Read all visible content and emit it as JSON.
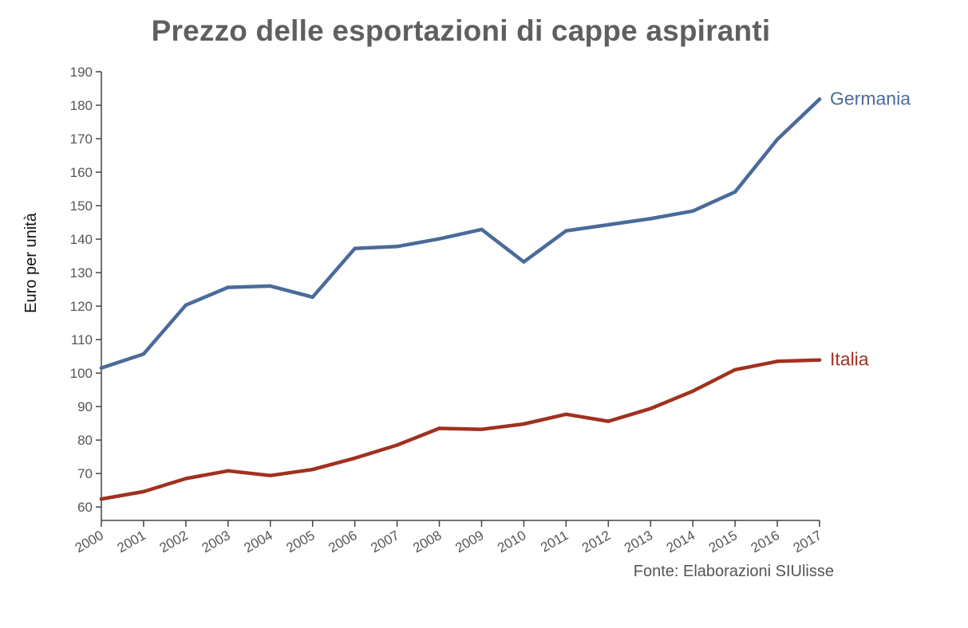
{
  "chart_data": {
    "type": "line",
    "title": "Prezzo delle esportazioni di cappe aspiranti",
    "ylabel": "Euro per unità",
    "xlabel": "",
    "source": "Fonte: Elaborazioni SIUlisse",
    "ylim": [
      56,
      190
    ],
    "y_ticks": [
      60,
      70,
      80,
      90,
      100,
      110,
      120,
      130,
      140,
      150,
      160,
      170,
      180,
      190
    ],
    "x": [
      "2000",
      "2001",
      "2002",
      "2003",
      "2004",
      "2005",
      "2006",
      "2007",
      "2008",
      "2009",
      "2010",
      "2011",
      "2012",
      "2013",
      "2014",
      "2015",
      "2016",
      "2017"
    ],
    "grid": false,
    "legend": "direct labels at line ends",
    "series": [
      {
        "name": "Germania",
        "color": "#4a6b9a",
        "values": [
          101.5,
          105.7,
          120.3,
          125.6,
          126.0,
          122.7,
          137.2,
          137.8,
          140.1,
          142.9,
          133.2,
          142.5,
          144.3,
          146.1,
          148.4,
          154.1,
          169.8,
          181.8
        ]
      },
      {
        "name": "Italia",
        "color": "#a0311f",
        "values": [
          62.4,
          64.6,
          68.5,
          70.8,
          69.4,
          71.2,
          74.6,
          78.5,
          83.5,
          83.2,
          84.8,
          87.7,
          85.6,
          89.4,
          94.6,
          101.0,
          103.5,
          103.9
        ]
      }
    ]
  }
}
